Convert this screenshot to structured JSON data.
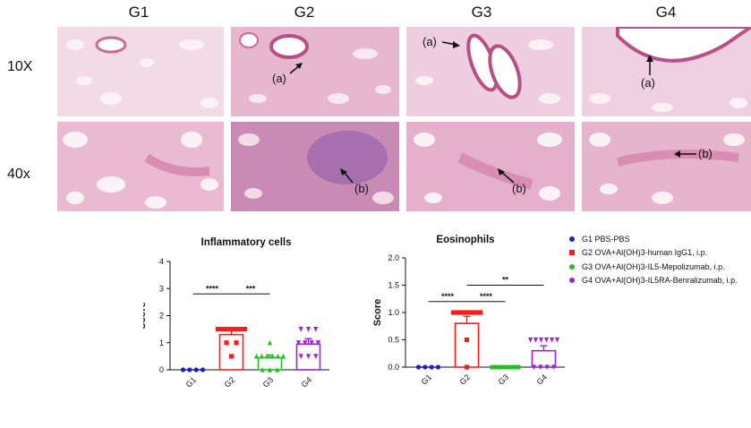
{
  "figure": {
    "columns": [
      "G1",
      "G2",
      "G3",
      "G4"
    ],
    "rows": [
      "10X",
      "40x"
    ],
    "annotations": {
      "a": "(a)",
      "b": "(b)"
    }
  },
  "legend": {
    "items": [
      {
        "label": "G1 PBS-PBS",
        "color": "#1f1fbf",
        "shape": "circle"
      },
      {
        "label": "G2 OVA+Al(OH)3-human IgG1, i.p.",
        "color": "#ff1a1a",
        "shape": "square"
      },
      {
        "label": "G3 OVA+Al(OH)3-IL5-Mepolizumab, i.p.",
        "color": "#22c022",
        "shape": "circle"
      },
      {
        "label": "G4 OVA+Al(OH)3-IL5RA-Benralizumab, i.p.",
        "color": "#9a22d8",
        "shape": "circle"
      }
    ]
  },
  "chart_data": [
    {
      "type": "bar",
      "title": "Inflammatory cells",
      "ylabel": "Score",
      "xlabel": "",
      "categories": [
        "G1",
        "G2",
        "G3",
        "G4"
      ],
      "values": [
        0,
        1.3,
        0.45,
        0.95
      ],
      "errors": [
        0,
        0.15,
        0.1,
        0.2
      ],
      "ylim": [
        0,
        4
      ],
      "yticks": [
        "0",
        "1",
        "2",
        "3",
        "4"
      ],
      "colors": [
        "#1f1fbf",
        "#ff1a1a",
        "#22c022",
        "#9a22d8"
      ],
      "markers": [
        "circle",
        "square",
        "triangle-up",
        "triangle-down"
      ],
      "points": [
        [
          0,
          0,
          0,
          0
        ],
        [
          1.5,
          1.5,
          1.5,
          1.5,
          1.5,
          1.5,
          1.5,
          1.0,
          1.0,
          0.5
        ],
        [
          1.0,
          0.5,
          0.5,
          0.5,
          0.5,
          0.5,
          0.5,
          0,
          0,
          0
        ],
        [
          1.5,
          1.5,
          1.5,
          1.0,
          1.0,
          1.0,
          1.0,
          0.5,
          0.5,
          0.5
        ]
      ],
      "significance": [
        {
          "from": 0,
          "to": 1,
          "label": "****",
          "y": 2.8
        },
        {
          "from": 1,
          "to": 2,
          "label": "***",
          "y": 2.8
        }
      ]
    },
    {
      "type": "bar",
      "title": "Eosinophils",
      "ylabel": "Score",
      "xlabel": "",
      "categories": [
        "G1",
        "G2",
        "G3",
        "G4"
      ],
      "values": [
        0,
        0.8,
        0,
        0.3
      ],
      "errors": [
        0,
        0.13,
        0,
        0.09
      ],
      "ylim": [
        0,
        2
      ],
      "yticks": [
        "0.0",
        "0.5",
        "1.0",
        "1.5",
        "2.0"
      ],
      "colors": [
        "#1f1fbf",
        "#ff1a1a",
        "#22c022",
        "#9a22d8"
      ],
      "markers": [
        "circle",
        "square",
        "circle",
        "triangle-down"
      ],
      "points": [
        [
          0,
          0,
          0,
          0
        ],
        [
          1.0,
          1.0,
          1.0,
          1.0,
          1.0,
          1.0,
          1.0,
          1.0,
          0.5,
          0
        ],
        [
          0,
          0,
          0,
          0,
          0,
          0,
          0,
          0,
          0,
          0
        ],
        [
          0.5,
          0.5,
          0.5,
          0.5,
          0.5,
          0.5,
          0,
          0,
          0,
          0
        ]
      ],
      "significance": [
        {
          "from": 0,
          "to": 1,
          "label": "****",
          "y": 1.2
        },
        {
          "from": 1,
          "to": 2,
          "label": "****",
          "y": 1.2
        },
        {
          "from": 1,
          "to": 3,
          "label": "**",
          "y": 1.5
        }
      ]
    }
  ]
}
